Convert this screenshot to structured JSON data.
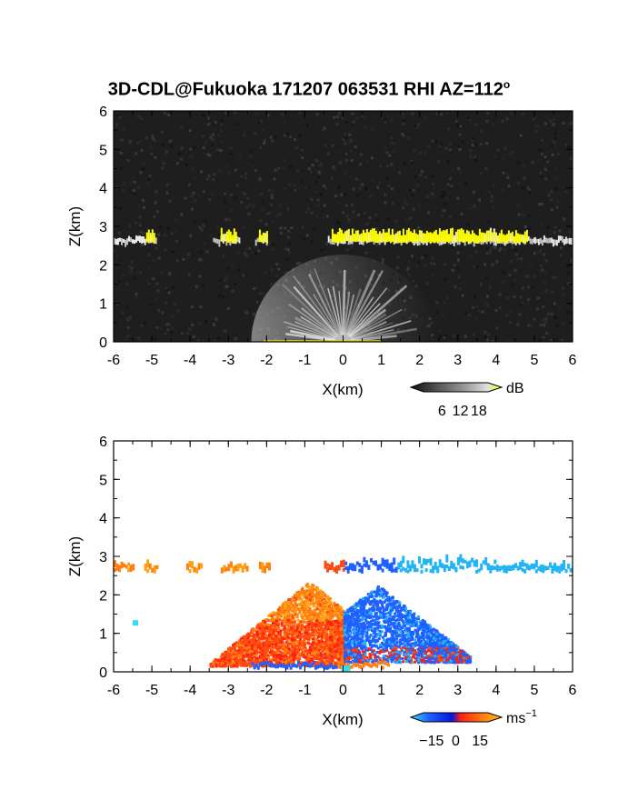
{
  "title": {
    "text": "3D-CDL@Fukuoka 171207 063531 RHI AZ=112",
    "degree": "o"
  },
  "chart_data": [
    {
      "type": "heatmap",
      "panel": "top",
      "quantity": "backscatter intensity",
      "xlabel": "X(km)",
      "ylabel": "Z(km)",
      "xlim": [
        -6,
        6
      ],
      "ylim": [
        0,
        6
      ],
      "xticks": [
        "-6",
        "-5",
        "-4",
        "-3",
        "-2",
        "-1",
        "0",
        "1",
        "2",
        "3",
        "4",
        "5",
        "6"
      ],
      "yticks": [
        "0",
        "1",
        "2",
        "3",
        "4",
        "5",
        "6"
      ],
      "background": "#1e1e1e",
      "colorbar": {
        "unit": "dB",
        "ticks": [
          "6",
          "12",
          "18"
        ],
        "range": [
          0,
          21
        ],
        "colors": [
          "#101010",
          "#555555",
          "#9a9a9a",
          "#e0e0e0",
          "#ffff00"
        ]
      },
      "features": {
        "cloud_layer": {
          "z_base_km": 2.6,
          "z_top_km": 2.85,
          "segments_km": [
            [
              -6,
              -5.2
            ],
            [
              -5.2,
              -4.9
            ],
            [
              -3.4,
              -2.7
            ],
            [
              -2.3,
              -2.0
            ],
            [
              -0.4,
              5.0
            ],
            [
              5.0,
              6.0
            ]
          ],
          "high_segments_km": [
            [
              -5.15,
              -4.95
            ],
            [
              -3.2,
              -2.8
            ],
            [
              -2.2,
              -2.0
            ],
            [
              -0.3,
              4.8
            ]
          ]
        },
        "near_field_fan": {
          "origin_km": [
            0,
            0
          ],
          "max_range_km": 2.4,
          "zmax_km": 2.2
        }
      }
    },
    {
      "type": "heatmap",
      "panel": "bottom",
      "quantity": "radial velocity",
      "xlabel": "X(km)",
      "ylabel": "Z(km)",
      "xlim": [
        -6,
        6
      ],
      "ylim": [
        0,
        6
      ],
      "xticks": [
        "-6",
        "-5",
        "-4",
        "-3",
        "-2",
        "-1",
        "0",
        "1",
        "2",
        "3",
        "4",
        "5",
        "6"
      ],
      "yticks": [
        "0",
        "1",
        "2",
        "3",
        "4",
        "5",
        "6"
      ],
      "background": "#ffffff",
      "colorbar": {
        "unit": "ms",
        "unit_superscript": "−1",
        "ticks": [
          "−15",
          "0",
          "15"
        ],
        "range": [
          -20,
          20
        ],
        "colors": [
          "#30e0f0",
          "#2060ff",
          "#0018e0",
          "#ff2010",
          "#ff8010",
          "#ffc010"
        ]
      },
      "features": {
        "cloud_layer": {
          "z_km": [
            2.55,
            2.85
          ],
          "left_velocity_ms": 14,
          "right_velocity_ms": -14,
          "segments_km": [
            [
              -6,
              -5.5
            ],
            [
              -5.2,
              -4.9
            ],
            [
              -4.1,
              -3.7
            ],
            [
              -3.2,
              -2.5
            ],
            [
              -2.2,
              -1.9
            ],
            [
              -0.5,
              6.0
            ]
          ]
        },
        "boundary_layer": {
          "left": {
            "x_km": [
              -3.5,
              0
            ],
            "z_km": [
              0.1,
              2.2
            ],
            "velocity_ms": 5
          },
          "right": {
            "x_km": [
              0,
              3.3
            ],
            "z_km": [
              0.2,
              2.0
            ],
            "velocity_ms": -8
          }
        },
        "isolated_pixel": {
          "x_km": -5.5,
          "z_km": 1.2,
          "velocity_ms": -18
        }
      }
    }
  ]
}
